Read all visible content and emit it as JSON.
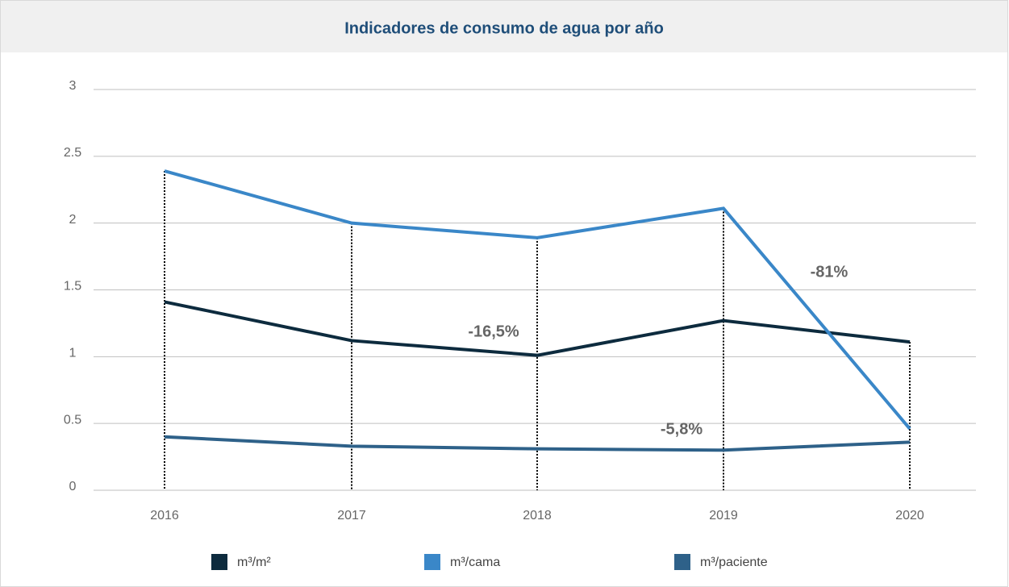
{
  "chart_data": {
    "type": "line",
    "title": "Indicadores de consumo de agua por año",
    "categories": [
      "2016",
      "2017",
      "2018",
      "2019",
      "2020"
    ],
    "series": [
      {
        "name": "m³/m²",
        "color": "#0d2b3e",
        "values": [
          1.41,
          1.12,
          1.01,
          1.27,
          1.11
        ]
      },
      {
        "name": "m³/cama",
        "color": "#3a87c8",
        "values": [
          2.39,
          2.0,
          1.89,
          2.11,
          0.46
        ]
      },
      {
        "name": "m³/paciente",
        "color": "#2e6189",
        "values": [
          0.4,
          0.33,
          0.31,
          0.3,
          0.36
        ]
      }
    ],
    "annotations": [
      "-16,5%",
      "-81%",
      "-5,8%"
    ],
    "ylim": [
      0,
      3
    ],
    "yticks": [
      0,
      0.5,
      1,
      1.5,
      2,
      2.5,
      3
    ],
    "grid": true,
    "legend": "bottom"
  }
}
